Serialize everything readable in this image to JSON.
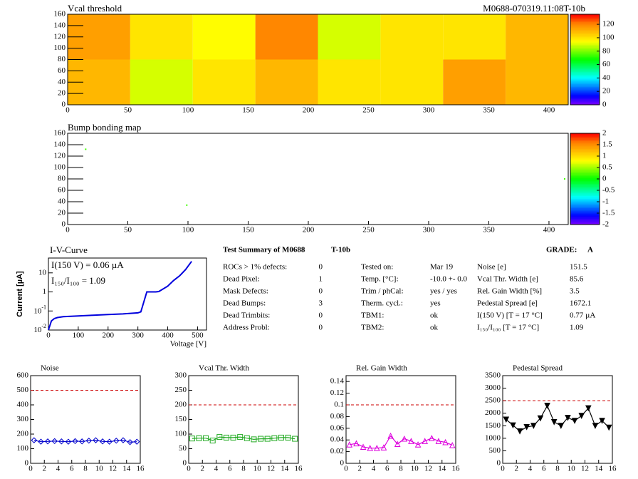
{
  "chart_data": [
    {
      "type": "heatmap",
      "title": "Vcal threshold",
      "annotation": "M0688-070319.11:08T-10b",
      "xbins": [
        0,
        52,
        104,
        156,
        208,
        260,
        312,
        364,
        416
      ],
      "ybins": [
        0,
        80,
        160
      ],
      "values": [
        [
          110,
          90,
          100,
          110,
          100,
          100,
          115,
          110
        ],
        [
          115,
          100,
          95,
          120,
          90,
          100,
          100,
          110
        ]
      ],
      "xlim": [
        0,
        416
      ],
      "ylim": [
        0,
        160
      ],
      "xticks": [
        0,
        50,
        100,
        150,
        200,
        250,
        300,
        350,
        400
      ],
      "yticks": [
        0,
        20,
        40,
        60,
        80,
        100,
        120,
        140,
        160
      ],
      "zlim": [
        0,
        135
      ],
      "zticks": [
        0,
        20,
        40,
        60,
        80,
        100,
        120
      ],
      "colormap": [
        "#8000ff",
        "#0000ff",
        "#0080ff",
        "#00ffff",
        "#00ff80",
        "#00ff00",
        "#80ff00",
        "#ffff00",
        "#ffc000",
        "#ff8000",
        "#ff0000"
      ]
    },
    {
      "type": "pixelmap",
      "title": "Bump bonding map",
      "x": [
        15,
        99,
        413
      ],
      "y": [
        132,
        34,
        80
      ],
      "values": [
        0.2,
        0.2,
        0.2
      ],
      "xlim": [
        0,
        416
      ],
      "ylim": [
        0,
        160
      ],
      "xticks": [
        0,
        50,
        100,
        150,
        200,
        250,
        300,
        350,
        400
      ],
      "yticks": [
        0,
        20,
        40,
        60,
        80,
        100,
        120,
        140,
        160
      ],
      "zlim": [
        -2,
        2
      ],
      "zticks": [
        -2,
        -1.5,
        -1,
        -0.5,
        0,
        0.5,
        1,
        1.5,
        2
      ],
      "colormap": [
        "#8000ff",
        "#0000ff",
        "#0080ff",
        "#00ffff",
        "#00ff80",
        "#00ff00",
        "#80ff00",
        "#ffff00",
        "#ffc000",
        "#ff8000",
        "#ff0000"
      ]
    },
    {
      "type": "line",
      "title": "I-V-Curve",
      "x_label": "Voltage [V]",
      "y_label": "Current [µA]",
      "annotations": [
        "I(150 V) = 0.06 µA",
        "I₁₅₀/I₁₀₀ =  1.09"
      ],
      "log_y": true,
      "color": "#0000dd",
      "x": [
        0,
        10,
        20,
        30,
        50,
        100,
        150,
        200,
        250,
        300,
        310,
        320,
        330,
        340,
        350,
        360,
        370,
        380,
        400,
        420,
        440,
        460,
        480
      ],
      "values": [
        0.01,
        0.03,
        0.04,
        0.045,
        0.05,
        0.055,
        0.06,
        0.065,
        0.07,
        0.08,
        0.09,
        0.3,
        1.0,
        1.0,
        1.0,
        1.0,
        1.05,
        1.3,
        2.0,
        4,
        7,
        15,
        40
      ],
      "xlim": [
        0,
        530
      ],
      "ylim": [
        0.01,
        60
      ],
      "xticks": [
        0,
        100,
        200,
        300,
        400,
        500
      ],
      "yticks": [
        {
          "value": 0.01,
          "label": "10",
          "exponent": "-2"
        },
        {
          "value": 0.1,
          "label": "10",
          "exponent": "-1"
        },
        1,
        10
      ]
    },
    {
      "type": "markers",
      "title": "Noise",
      "x": [
        0.5,
        1.5,
        2.5,
        3.5,
        4.5,
        5.5,
        6.5,
        7.5,
        8.5,
        9.5,
        10.5,
        11.5,
        12.5,
        13.5,
        14.5,
        15.5
      ],
      "series": [
        {
          "color": "#0000cc",
          "marker": "diamond",
          "values": [
            158,
            148,
            150,
            152,
            150,
            148,
            152,
            150,
            155,
            158,
            150,
            148,
            155,
            158,
            145,
            148
          ]
        }
      ],
      "reference_line": {
        "value": 500,
        "color": "#cc0000"
      },
      "xlim": [
        0,
        16
      ],
      "ylim": [
        0,
        600
      ],
      "xticks": [
        0,
        2,
        4,
        6,
        8,
        10,
        12,
        14,
        16
      ],
      "yticks": [
        0,
        100,
        200,
        300,
        400,
        500,
        600
      ]
    },
    {
      "type": "markers",
      "title": "Vcal Thr. Width",
      "x": [
        0.5,
        1.5,
        2.5,
        3.5,
        4.5,
        5.5,
        6.5,
        7.5,
        8.5,
        9.5,
        10.5,
        11.5,
        12.5,
        13.5,
        14.5,
        15.5
      ],
      "series": [
        {
          "color": "#22aa22",
          "marker": "square",
          "values": [
            85,
            86,
            86,
            78,
            90,
            88,
            88,
            90,
            86,
            82,
            84,
            84,
            86,
            88,
            88,
            84
          ]
        }
      ],
      "reference_line": {
        "value": 200,
        "color": "#cc0000"
      },
      "xlim": [
        0,
        16
      ],
      "ylim": [
        0,
        300
      ],
      "xticks": [
        0,
        2,
        4,
        6,
        8,
        10,
        12,
        14,
        16
      ],
      "yticks": [
        0,
        50,
        100,
        150,
        200,
        250,
        300
      ]
    },
    {
      "type": "markers",
      "title": "Rel. Gain Width",
      "x": [
        0.5,
        1.5,
        2.5,
        3.5,
        4.5,
        5.5,
        6.5,
        7.5,
        8.5,
        9.5,
        10.5,
        11.5,
        12.5,
        13.5,
        14.5,
        15.5
      ],
      "series": [
        {
          "color": "#dd00dd",
          "marker": "triangle-up",
          "values": [
            0.032,
            0.034,
            0.028,
            0.026,
            0.026,
            0.027,
            0.047,
            0.033,
            0.042,
            0.038,
            0.032,
            0.038,
            0.043,
            0.038,
            0.036,
            0.031
          ]
        }
      ],
      "reference_line": {
        "value": 0.1,
        "color": "#cc0000"
      },
      "xlim": [
        0,
        16
      ],
      "ylim": [
        0,
        0.15
      ],
      "xticks": [
        0,
        2,
        4,
        6,
        8,
        10,
        12,
        14,
        16
      ],
      "yticks": [
        0,
        0.02,
        0.04,
        0.06,
        0.08,
        0.1,
        0.12,
        0.14
      ]
    },
    {
      "type": "markers",
      "title": "Pedestal Spread",
      "x": [
        0.5,
        1.5,
        2.5,
        3.5,
        4.5,
        5.5,
        6.5,
        7.5,
        8.5,
        9.5,
        10.5,
        11.5,
        12.5,
        13.5,
        14.5,
        15.5
      ],
      "series": [
        {
          "color": "#000000",
          "marker": "triangle-down",
          "values": [
            1750,
            1520,
            1280,
            1450,
            1500,
            1800,
            2300,
            1650,
            1500,
            1820,
            1700,
            1900,
            2200,
            1500,
            1700,
            1430
          ]
        }
      ],
      "reference_line": {
        "value": 2500,
        "color": "#cc0000"
      },
      "xlim": [
        0,
        16
      ],
      "ylim": [
        0,
        3500
      ],
      "xticks": [
        0,
        2,
        4,
        6,
        8,
        10,
        12,
        14,
        16
      ],
      "yticks": [
        0,
        500,
        1000,
        1500,
        2000,
        2500,
        3000,
        3500
      ]
    }
  ],
  "summary": {
    "title": "Test Summary of M0688",
    "module_type": "T-10b",
    "grade_label": "GRADE:",
    "grade": "A",
    "defects": [
      [
        "ROCs > 1% defects:",
        "0"
      ],
      [
        "Dead Pixel:",
        "1"
      ],
      [
        "Mask Defects:",
        "0"
      ],
      [
        "Dead Bumps:",
        "3"
      ],
      [
        "Dead Trimbits:",
        "0"
      ],
      [
        "Address Probl:",
        "0"
      ]
    ],
    "conditions": [
      [
        "Tested on:",
        "Mar 19"
      ],
      [
        "Temp. [°C]:",
        "-10.0 +- 0.0"
      ],
      [
        "Trim / phCal:",
        "yes / yes"
      ],
      [
        "Therm. cycl.:",
        "yes"
      ],
      [
        "TBM1:",
        "ok"
      ],
      [
        "TBM2:",
        "ok"
      ]
    ],
    "results": [
      [
        "Noise [e]",
        "151.5"
      ],
      [
        "Vcal Thr. Width [e]",
        "85.6"
      ],
      [
        "Rel. Gain Width [%]",
        "3.5"
      ],
      [
        "Pedestal Spread [e]",
        "1672.1"
      ],
      [
        "I(150 V) [T = 17 °C]",
        "0.77 µA"
      ],
      [
        "I₁₅₀/I₁₀₀  [T = 17 °C]",
        "1.09"
      ]
    ]
  }
}
